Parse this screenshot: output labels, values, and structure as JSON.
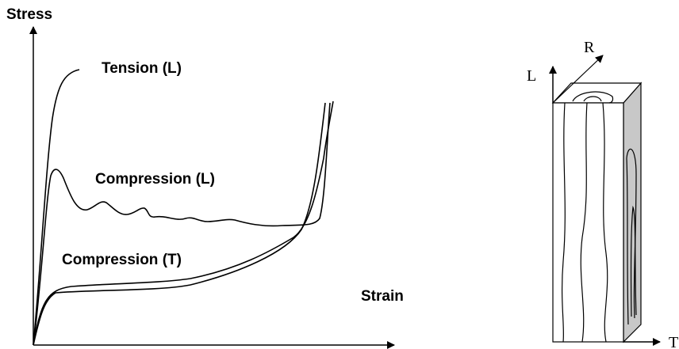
{
  "stress_strain": {
    "y_axis_label": "Stress",
    "x_axis_label": "Strain",
    "curves": [
      {
        "label": "Tension (L)"
      },
      {
        "label": "Compression (L)"
      },
      {
        "label": "Compression (T)"
      }
    ]
  },
  "wood_block": {
    "axes": {
      "longitudinal": "L",
      "radial": "R",
      "tangential": "T"
    }
  }
}
